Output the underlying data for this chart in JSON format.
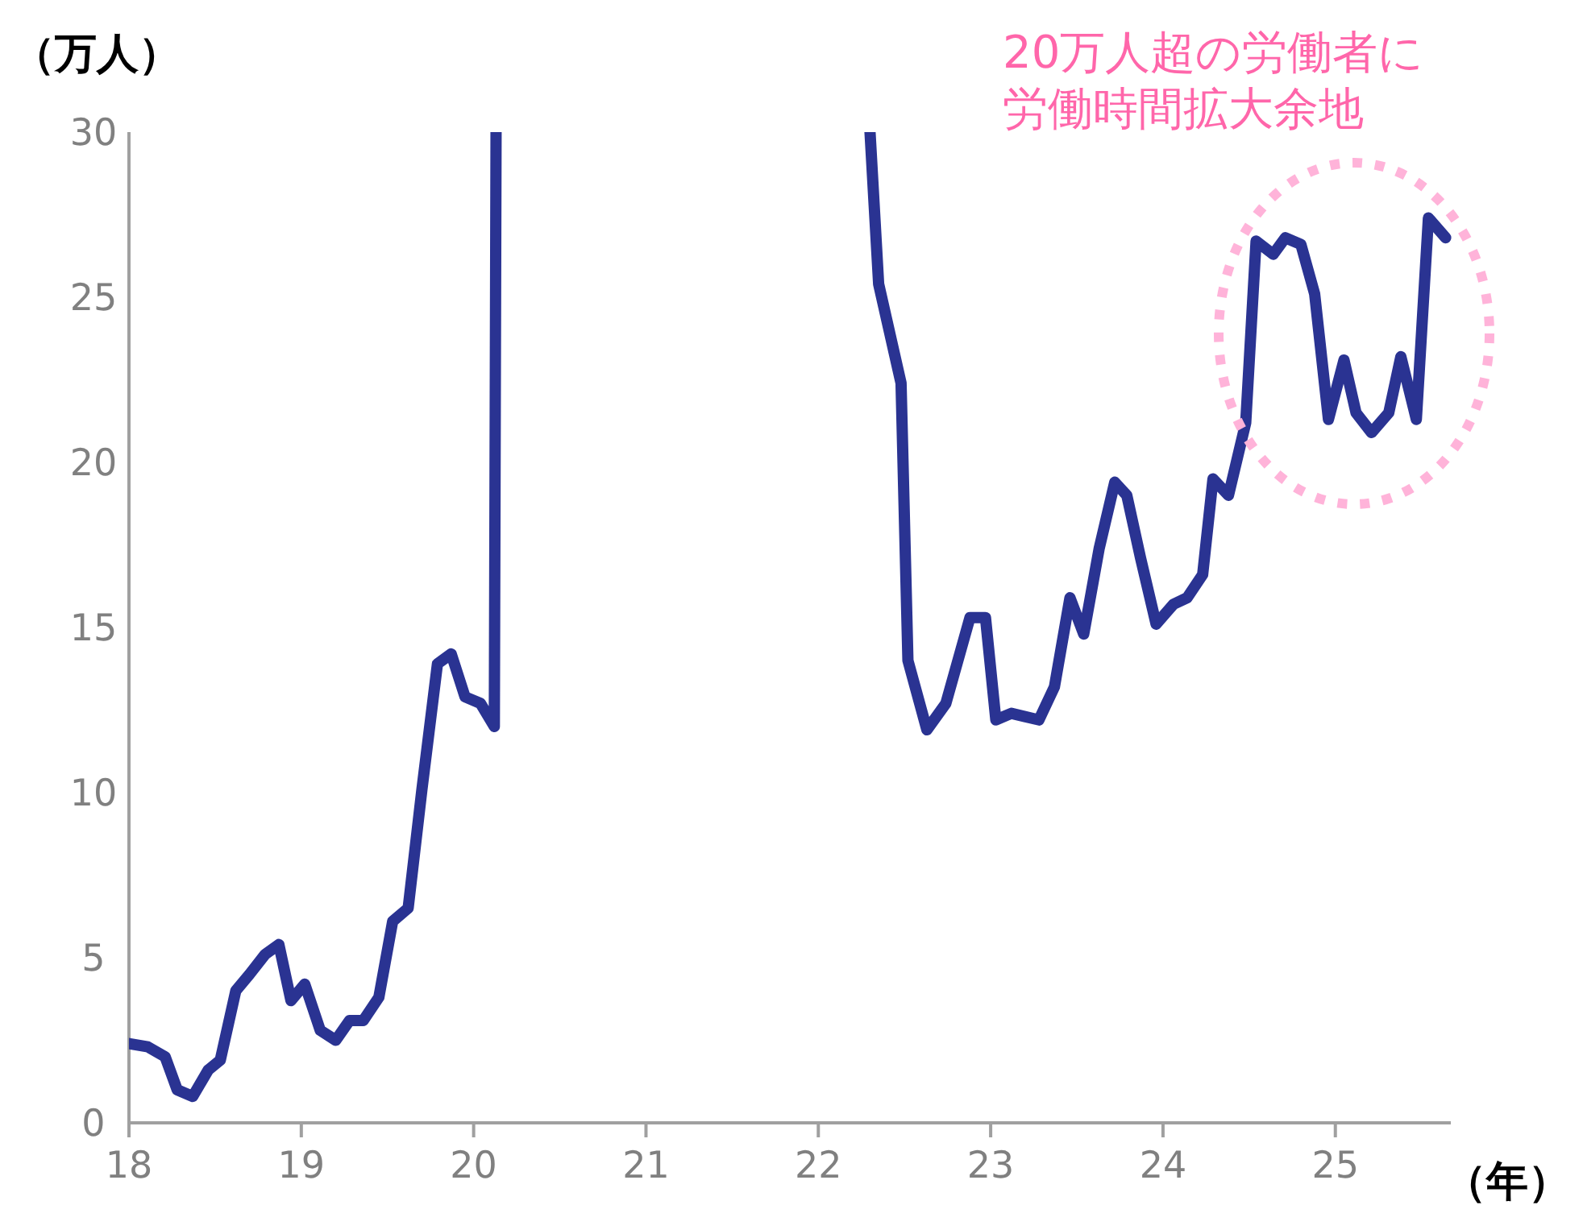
{
  "chart_data": {
    "type": "line",
    "ylabel": "（万人）",
    "xlabel": "（年）",
    "xlim": [
      18,
      25.67
    ],
    "ylim": [
      0,
      30
    ],
    "xticks": [
      18,
      19,
      20,
      21,
      22,
      23,
      24,
      25
    ],
    "yticks": [
      0,
      5,
      10,
      15,
      20,
      25,
      30
    ],
    "annotations": [
      "20万人超の労働者に労働時間拡大余地"
    ],
    "series": [
      {
        "color": "#2a3392",
        "x": [
          18.0,
          18.11,
          18.21,
          18.28,
          18.37,
          18.46,
          18.53,
          18.62,
          18.7,
          18.79,
          18.87,
          18.94,
          19.02,
          19.11,
          19.2,
          19.28,
          19.36,
          19.45,
          19.53,
          19.62,
          19.7,
          19.79,
          19.87,
          19.95,
          20.04,
          20.12,
          20.13
        ],
        "values": [
          2.4,
          2.3,
          2.0,
          1.0,
          0.8,
          1.6,
          1.9,
          4.0,
          4.5,
          5.1,
          5.4,
          3.7,
          4.2,
          2.8,
          2.5,
          3.1,
          3.1,
          3.8,
          6.1,
          6.5,
          10.1,
          13.9,
          14.2,
          12.9,
          12.7,
          12.0,
          30
        ]
      },
      {
        "color": "#2a3392",
        "x": [
          22.3,
          22.35,
          22.48,
          22.52,
          22.63,
          22.74,
          22.88,
          22.97,
          23.03,
          23.12,
          23.28,
          23.37,
          23.46,
          23.54,
          23.63,
          23.72,
          23.79,
          23.87,
          23.96,
          24.06,
          24.14,
          24.23,
          24.29,
          24.38,
          24.48,
          24.54,
          24.64,
          24.71,
          24.8,
          24.88,
          24.96,
          25.05,
          25.12,
          25.21,
          25.31,
          25.38,
          25.47,
          25.54,
          25.64
        ],
        "values": [
          30,
          25.4,
          22.4,
          14.0,
          11.9,
          12.7,
          15.3,
          15.3,
          12.2,
          12.4,
          12.2,
          13.2,
          15.9,
          14.8,
          17.4,
          19.4,
          19.0,
          17.1,
          15.1,
          15.7,
          15.9,
          16.6,
          19.5,
          19.0,
          21.2,
          26.7,
          26.3,
          26.8,
          26.6,
          25.1,
          21.3,
          23.1,
          21.5,
          20.9,
          21.5,
          23.2,
          21.3,
          27.4,
          26.8
        ]
      }
    ]
  }
}
